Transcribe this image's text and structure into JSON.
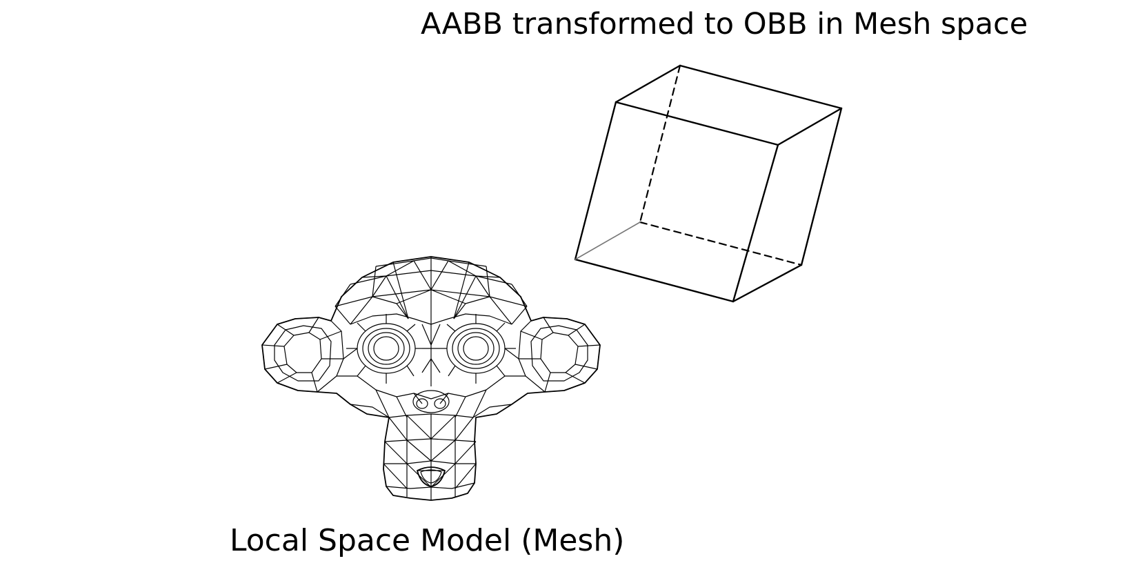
{
  "labels": {
    "obb_caption": "AABB transformed to OBB in Mesh space",
    "mesh_caption": "Local Space Model (Mesh)"
  },
  "colors": {
    "background": "#ffffff",
    "ink": "#000000",
    "hidden_edge": "#777777"
  },
  "figures": {
    "mesh": "wireframe-monkey-head",
    "box": "oriented-bounding-box-wireframe"
  }
}
